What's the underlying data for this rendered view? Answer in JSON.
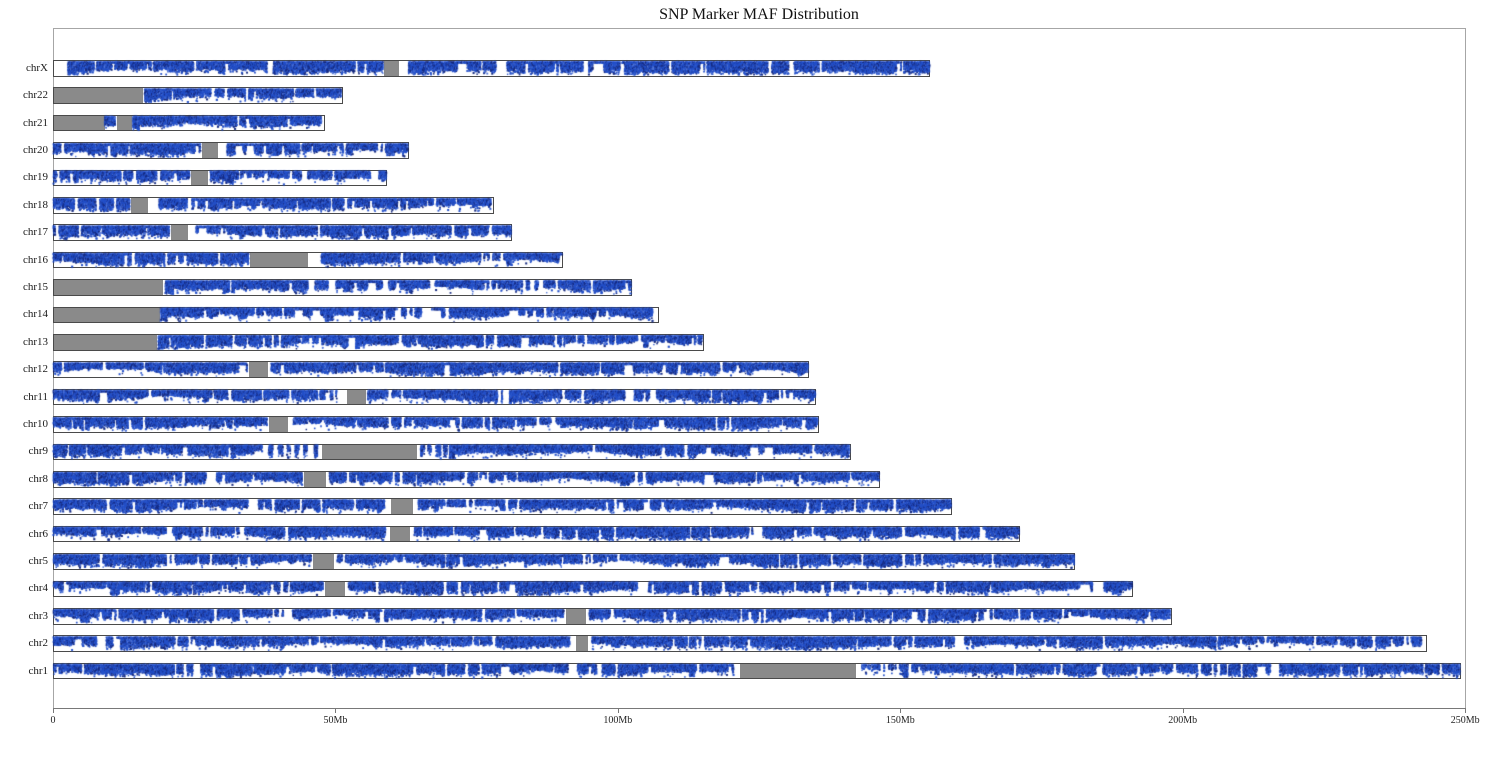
{
  "title": "SNP Marker MAF Distribution",
  "colors": {
    "marker_blue": "#2450c8",
    "marker_blue_dark": "#15297e",
    "marker_blue_light": "#5377d8",
    "no_data_gray": "#8a8a8a",
    "bar_border": "#4a4a4a",
    "plot_frame": "#a6a6a6",
    "axis_line": "#787878",
    "text": "#1a1a1a"
  },
  "chart_data": {
    "type": "scatter",
    "title": "SNP Marker MAF Distribution",
    "x_unit": "Mb",
    "x_range_mb": [
      0,
      250
    ],
    "grid": "off",
    "x_ticks": [
      {
        "label": "0",
        "mb": 0
      },
      {
        "label": "50Mb",
        "mb": 50
      },
      {
        "label": "100Mb",
        "mb": 100
      },
      {
        "label": "150Mb",
        "mb": 150
      },
      {
        "label": "200Mb",
        "mb": 200
      },
      {
        "label": "250Mb",
        "mb": 250
      }
    ],
    "y_categories_top_to_bottom": [
      "chrX",
      "chr22",
      "chr21",
      "chr20",
      "chr19",
      "chr18",
      "chr17",
      "chr16",
      "chr15",
      "chr14",
      "chr13",
      "chr12",
      "chr11",
      "chr10",
      "chr9",
      "chr8",
      "chr7",
      "chr6",
      "chr5",
      "chr4",
      "chr3",
      "chr2",
      "chr1"
    ],
    "description": "Each horizontal track is a chromosome; blue marks are SNP markers (MAF scatter), gray blocks are regions without markers (centromeres / heterochromatin / acrocentric p-arms).",
    "chromosomes": [
      {
        "name": "chrX",
        "length_mb": 155.27,
        "gray_regions_mb": [
          [
            58.5,
            61.0
          ]
        ],
        "empty_regions_mb": [
          [
            0,
            2.7
          ],
          [
            61.0,
            62.9
          ]
        ],
        "sparse_regions_mb": [],
        "cluster_marks_mb": [],
        "boost_regions_mb": [
          [
            2.7,
            4.0
          ]
        ]
      },
      {
        "name": "chr22",
        "length_mb": 51.3,
        "gray_regions_mb": [
          [
            0,
            15.8
          ]
        ],
        "empty_regions_mb": [
          [
            15.8,
            16.2
          ]
        ],
        "sparse_regions_mb": [],
        "cluster_marks_mb": [],
        "boost_regions_mb": [
          [
            16.2,
            17.3
          ]
        ]
      },
      {
        "name": "chr21",
        "length_mb": 48.13,
        "gray_regions_mb": [
          [
            0,
            9.05
          ],
          [
            11.15,
            13.8
          ]
        ],
        "empty_regions_mb": [
          [
            13.8,
            14.05
          ]
        ],
        "sparse_regions_mb": [],
        "cluster_marks_mb": [],
        "boost_regions_mb": [
          [
            14.05,
            15.2
          ]
        ]
      },
      {
        "name": "chr20",
        "length_mb": 63.03,
        "gray_regions_mb": [
          [
            26.2,
            29.1
          ]
        ],
        "empty_regions_mb": [
          [
            29.1,
            30.8
          ]
        ],
        "sparse_regions_mb": [],
        "cluster_marks_mb": [],
        "boost_regions_mb": []
      },
      {
        "name": "chr19",
        "length_mb": 59.13,
        "gray_regions_mb": [
          [
            24.3,
            27.2
          ]
        ],
        "empty_regions_mb": [
          [
            27.2,
            27.8
          ]
        ],
        "sparse_regions_mb": [],
        "cluster_marks_mb": [],
        "boost_regions_mb": []
      },
      {
        "name": "chr18",
        "length_mb": 78.08,
        "gray_regions_mb": [
          [
            13.6,
            16.7
          ]
        ],
        "empty_regions_mb": [
          [
            16.7,
            18.8
          ]
        ],
        "sparse_regions_mb": [],
        "cluster_marks_mb": [],
        "boost_regions_mb": []
      },
      {
        "name": "chr17",
        "length_mb": 81.2,
        "gray_regions_mb": [
          [
            20.7,
            23.8
          ]
        ],
        "empty_regions_mb": [
          [
            23.8,
            25.3
          ]
        ],
        "sparse_regions_mb": [],
        "cluster_marks_mb": [],
        "boost_regions_mb": []
      },
      {
        "name": "chr16",
        "length_mb": 90.35,
        "gray_regions_mb": [
          [
            34.7,
            45.0
          ]
        ],
        "empty_regions_mb": [
          [
            45.0,
            46.0
          ]
        ],
        "sparse_regions_mb": [],
        "cluster_marks_mb": [],
        "boost_regions_mb": []
      },
      {
        "name": "chr15",
        "length_mb": 102.53,
        "gray_regions_mb": [
          [
            0,
            19.3
          ]
        ],
        "empty_regions_mb": [
          [
            19.3,
            19.9
          ]
        ],
        "sparse_regions_mb": [],
        "cluster_marks_mb": [],
        "boost_regions_mb": [
          [
            19.9,
            21.3
          ]
        ]
      },
      {
        "name": "chr14",
        "length_mb": 107.35,
        "gray_regions_mb": [
          [
            0,
            18.7
          ]
        ],
        "empty_regions_mb": [
          [
            18.7,
            19.0
          ]
        ],
        "sparse_regions_mb": [],
        "cluster_marks_mb": [],
        "boost_regions_mb": [
          [
            19.0,
            20.2
          ]
        ]
      },
      {
        "name": "chr13",
        "length_mb": 115.17,
        "gray_regions_mb": [
          [
            0,
            18.3
          ]
        ],
        "empty_regions_mb": [
          [
            18.3,
            18.6
          ]
        ],
        "sparse_regions_mb": [],
        "cluster_marks_mb": [],
        "boost_regions_mb": [
          [
            18.6,
            19.8
          ]
        ]
      },
      {
        "name": "chr12",
        "length_mb": 133.85,
        "gray_regions_mb": [
          [
            34.5,
            37.9
          ]
        ],
        "empty_regions_mb": [
          [
            37.9,
            38.6
          ]
        ],
        "sparse_regions_mb": [],
        "cluster_marks_mb": [],
        "boost_regions_mb": []
      },
      {
        "name": "chr11",
        "length_mb": 135.01,
        "gray_regions_mb": [
          [
            51.9,
            55.3
          ]
        ],
        "empty_regions_mb": [
          [
            50.2,
            51.9
          ],
          [
            55.3,
            55.8
          ]
        ],
        "sparse_regions_mb": [],
        "cluster_marks_mb": [],
        "boost_regions_mb": []
      },
      {
        "name": "chr10",
        "length_mb": 135.53,
        "gray_regions_mb": [
          [
            38.0,
            41.5
          ]
        ],
        "empty_regions_mb": [
          [
            41.5,
            42.6
          ]
        ],
        "sparse_regions_mb": [],
        "cluster_marks_mb": [],
        "boost_regions_mb": []
      },
      {
        "name": "chr9",
        "length_mb": 141.21,
        "gray_regions_mb": [
          [
            47.5,
            64.3
          ]
        ],
        "empty_regions_mb": [
          [
            37.0,
            47.5
          ],
          [
            64.3,
            70.2
          ]
        ],
        "sparse_regions_mb": [
          [
            35.5,
            37.0
          ]
        ],
        "cluster_marks_mb": [
          [
            38.6,
            0.7
          ],
          [
            40.3,
            0.9
          ],
          [
            41.7,
            0.6
          ],
          [
            43.2,
            0.8
          ],
          [
            44.7,
            0.7
          ],
          [
            46.5,
            0.6
          ],
          [
            65.5,
            0.7
          ],
          [
            66.7,
            0.6
          ],
          [
            68.2,
            0.9
          ],
          [
            69.4,
            0.6
          ]
        ],
        "boost_regions_mb": [
          [
            70.2,
            71.0
          ]
        ]
      },
      {
        "name": "chr8",
        "length_mb": 146.36,
        "gray_regions_mb": [
          [
            44.2,
            48.1
          ]
        ],
        "empty_regions_mb": [
          [
            48.1,
            48.9
          ]
        ],
        "sparse_regions_mb": [],
        "cluster_marks_mb": [],
        "boost_regions_mb": []
      },
      {
        "name": "chr7",
        "length_mb": 159.14,
        "gray_regions_mb": [
          [
            59.7,
            63.6
          ]
        ],
        "empty_regions_mb": [
          [
            58.7,
            59.7
          ],
          [
            63.6,
            64.6
          ]
        ],
        "sparse_regions_mb": [],
        "cluster_marks_mb": [],
        "boost_regions_mb": []
      },
      {
        "name": "chr6",
        "length_mb": 171.12,
        "gray_regions_mb": [
          [
            59.5,
            63.1
          ]
        ],
        "empty_regions_mb": [
          [
            58.8,
            59.5
          ],
          [
            63.1,
            63.9
          ]
        ],
        "sparse_regions_mb": [],
        "cluster_marks_mb": [],
        "boost_regions_mb": []
      },
      {
        "name": "chr5",
        "length_mb": 180.92,
        "gray_regions_mb": [
          [
            45.8,
            49.5
          ]
        ],
        "empty_regions_mb": [
          [
            49.5,
            50.3
          ]
        ],
        "sparse_regions_mb": [],
        "cluster_marks_mb": [],
        "boost_regions_mb": []
      },
      {
        "name": "chr4",
        "length_mb": 191.15,
        "gray_regions_mb": [
          [
            48.0,
            51.6
          ]
        ],
        "empty_regions_mb": [
          [
            51.6,
            52.4
          ]
        ],
        "sparse_regions_mb": [],
        "cluster_marks_mb": [],
        "boost_regions_mb": []
      },
      {
        "name": "chr3",
        "length_mb": 198.02,
        "gray_regions_mb": [
          [
            90.6,
            94.1
          ]
        ],
        "empty_regions_mb": [
          [
            94.1,
            95.0
          ]
        ],
        "sparse_regions_mb": [],
        "cluster_marks_mb": [],
        "boost_regions_mb": []
      },
      {
        "name": "chr2",
        "length_mb": 243.2,
        "gray_regions_mb": [
          [
            92.4,
            94.6
          ]
        ],
        "empty_regions_mb": [
          [
            91.5,
            92.4
          ],
          [
            94.6,
            95.4
          ]
        ],
        "sparse_regions_mb": [],
        "cluster_marks_mb": [],
        "boost_regions_mb": []
      },
      {
        "name": "chr1",
        "length_mb": 249.25,
        "gray_regions_mb": [
          [
            121.5,
            142.0
          ]
        ],
        "empty_regions_mb": [
          [
            120.4,
            121.5
          ],
          [
            142.0,
            143.0
          ]
        ],
        "sparse_regions_mb": [
          [
            143.0,
            150.5
          ]
        ],
        "cluster_marks_mb": [
          [
            143.8,
            0.8
          ],
          [
            145.6,
            0.7
          ],
          [
            147.1,
            0.9
          ],
          [
            148.7,
            0.6
          ],
          [
            150.1,
            0.7
          ]
        ],
        "boost_regions_mb": [
          [
            150.5,
            151.4
          ]
        ]
      }
    ]
  }
}
